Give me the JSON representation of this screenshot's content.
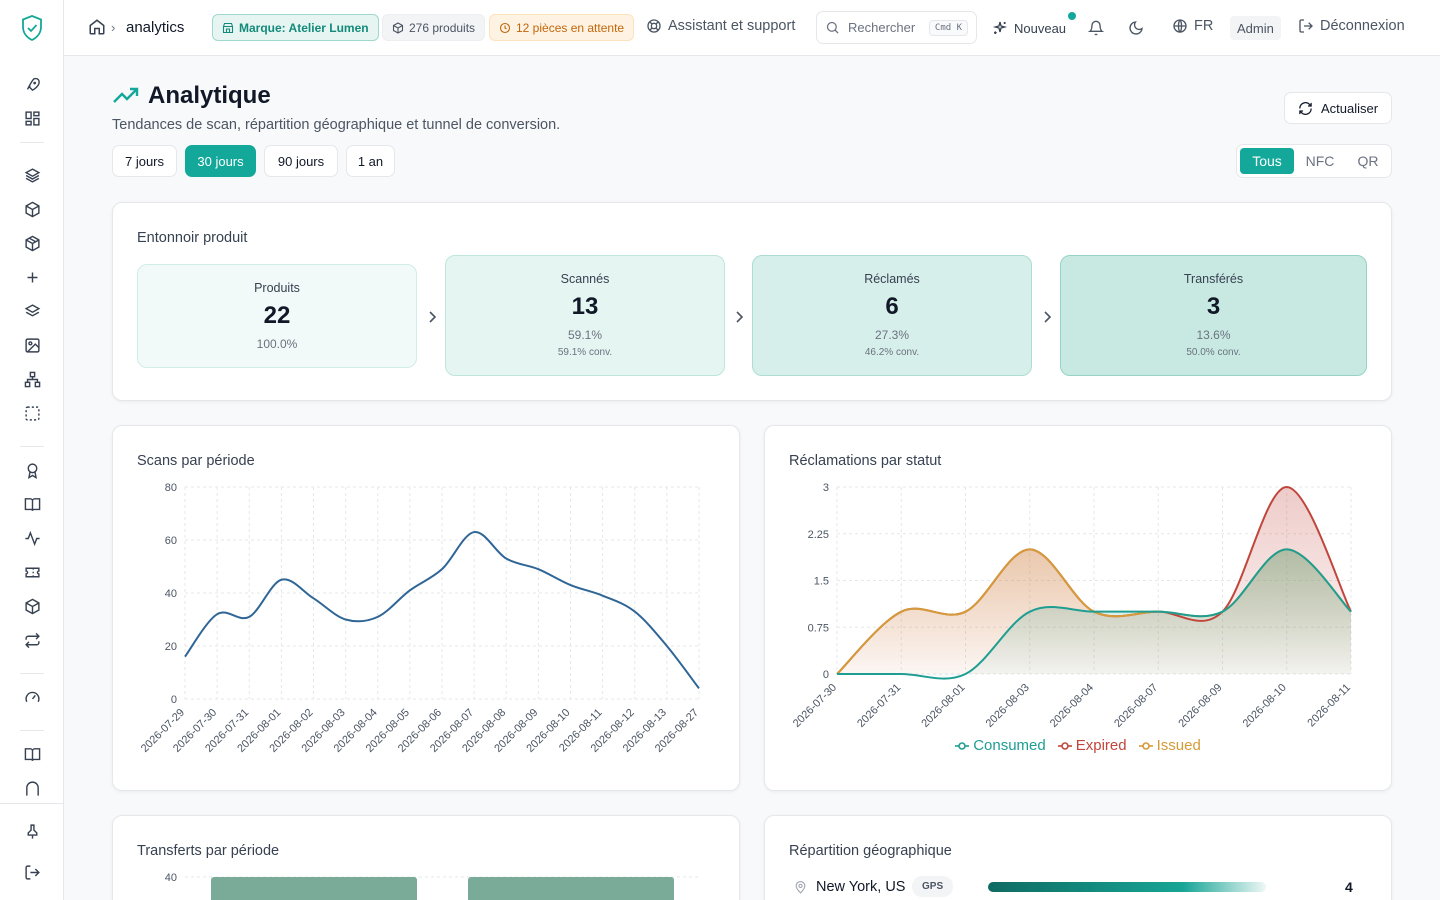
{
  "header": {
    "breadcrumb": "analytics",
    "brand_pill": "Marque: Atelier Lumen",
    "products_pill": "276 produits",
    "pending_pill": "12 pièces en attente",
    "support": "Assistant et support",
    "search_placeholder": "Rechercher",
    "search_kbd": "Cmd  K",
    "new_label": "Nouveau",
    "lang": "FR",
    "role_badge": "Admin",
    "logout": "Déconnexion"
  },
  "page": {
    "title": "Analytique",
    "subtitle": "Tendances de scan, répartition géographique et tunnel de conversion.",
    "refresh": "Actualiser",
    "ranges": [
      "7 jours",
      "30 jours",
      "90 jours",
      "1 an"
    ],
    "active_range": "30 jours",
    "channels": [
      "Tous",
      "NFC",
      "QR"
    ],
    "active_channel": "Tous"
  },
  "funnel": {
    "title": "Entonnoir produit",
    "steps": [
      {
        "label": "Produits",
        "value": "22",
        "pct": "100.0%",
        "conv": ""
      },
      {
        "label": "Scannés",
        "value": "13",
        "pct": "59.1%",
        "conv": "59.1% conv."
      },
      {
        "label": "Réclamés",
        "value": "6",
        "pct": "27.3%",
        "conv": "46.2% conv."
      },
      {
        "label": "Transférés",
        "value": "3",
        "pct": "13.6%",
        "conv": "50.0% conv."
      }
    ]
  },
  "scans_card": {
    "title": "Scans par période"
  },
  "claims_card": {
    "title": "Réclamations par statut"
  },
  "transfers_card": {
    "title": "Transferts par période"
  },
  "geo_card": {
    "title": "Répartition géographique",
    "rows": [
      {
        "city": "New York, US",
        "tag": "GPS",
        "count": "4"
      }
    ]
  },
  "colors": {
    "accent": "#14a89a",
    "scan_line": "#2f6696",
    "consumed": "#1e9e92",
    "expired": "#c0463d",
    "issued": "#d59a3a",
    "transfer_bar": "#7aab99"
  },
  "chart_data": [
    {
      "type": "line",
      "title": "Scans par période",
      "categories": [
        "2026-07-29",
        "2026-07-30",
        "2026-07-31",
        "2026-08-01",
        "2026-08-02",
        "2026-08-03",
        "2026-08-04",
        "2026-08-05",
        "2026-08-06",
        "2026-08-07",
        "2026-08-08",
        "2026-08-09",
        "2026-08-10",
        "2026-08-11",
        "2026-08-12",
        "2026-08-13",
        "2026-08-27"
      ],
      "series": [
        {
          "values": [
            16,
            32,
            31,
            45,
            38,
            30,
            31,
            41,
            49,
            63,
            53,
            49,
            43,
            39,
            33,
            20,
            4
          ]
        }
      ],
      "yticks": [
        "0",
        "20",
        "40",
        "60",
        "80"
      ],
      "ylim": [
        0,
        80
      ],
      "grid": true
    },
    {
      "type": "area",
      "title": "Réclamations par statut",
      "categories": [
        "2026-07-30",
        "2026-07-31",
        "2026-08-01",
        "2026-08-03",
        "2026-08-04",
        "2026-08-07",
        "2026-08-09",
        "2026-08-10",
        "2026-08-11"
      ],
      "series": [
        {
          "name": "Consumed",
          "values": [
            0,
            0,
            0,
            1,
            1,
            1,
            1,
            2,
            1
          ]
        },
        {
          "name": "Expired",
          "values": [
            0,
            1,
            1,
            2,
            1,
            1,
            1,
            3,
            1
          ]
        },
        {
          "name": "Issued",
          "values": [
            0,
            1,
            1,
            2,
            1,
            1,
            1,
            2,
            1
          ]
        }
      ],
      "yticks": [
        "0",
        "0.75",
        "1.5",
        "2.25",
        "3"
      ],
      "ylim": [
        0,
        3
      ],
      "legend": "bottom",
      "grid": true
    },
    {
      "type": "bar",
      "title": "Transferts par période",
      "yticks": [
        "40"
      ],
      "grid": true
    }
  ]
}
